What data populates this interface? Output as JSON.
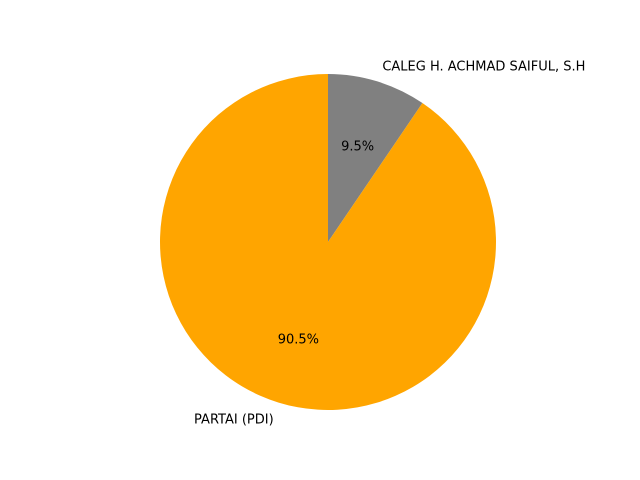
{
  "chart_data": {
    "type": "pie",
    "title": "",
    "start_angle_deg": 90,
    "direction": "clockwise",
    "slices": [
      {
        "label": "CALEG H. ACHMAD SAIFUL, S.H",
        "value": 9.5,
        "pct_label": "9.5%",
        "color": "#808080"
      },
      {
        "label": "PARTAI (PDI)",
        "value": 90.5,
        "pct_label": "90.5%",
        "color": "#FFA500"
      }
    ]
  }
}
